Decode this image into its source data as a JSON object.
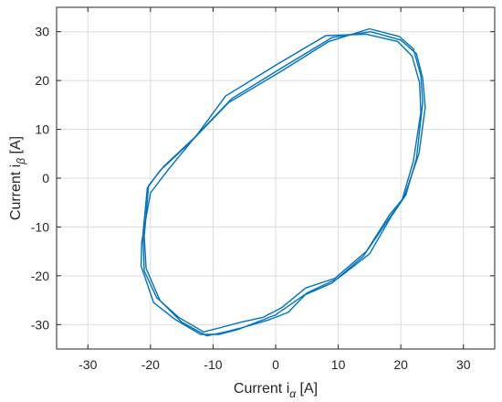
{
  "chart_data": {
    "type": "line",
    "xlabel": {
      "main": "Current i",
      "sub": "α",
      "unit": " [A]"
    },
    "ylabel": {
      "main": "Current i",
      "sub": "β",
      "unit": " [A]"
    },
    "xlim": [
      -35,
      35
    ],
    "ylim": [
      -35,
      35
    ],
    "xticks": [
      -30,
      -20,
      -10,
      0,
      10,
      20,
      30
    ],
    "yticks": [
      -30,
      -20,
      -10,
      0,
      10,
      20,
      30
    ],
    "grid": true,
    "series_color": "#0072BD",
    "series": [
      {
        "x": [
          15.2,
          20.0,
          22.5,
          23.5,
          23.9,
          22.9,
          20.5,
          18.4,
          15.0,
          10.0,
          5.0,
          2.0,
          -1.0,
          -5.0,
          -8.0,
          -11.0,
          -15.0,
          -18.5,
          -20.7,
          -21.0,
          -20.3,
          -17.8,
          -13.0,
          -7.0,
          1.5,
          9.0,
          15.2
        ],
        "y": [
          30.0,
          28.3,
          25.5,
          20.5,
          14.5,
          5.0,
          -4.0,
          -8.0,
          -15.5,
          -20.5,
          -23.5,
          -27.5,
          -29.0,
          -30.5,
          -31.5,
          -32.3,
          -29.5,
          -25.0,
          -18.5,
          -12.0,
          -1.5,
          2.5,
          8.3,
          16.3,
          23.0,
          28.8,
          30.0
        ]
      },
      {
        "x": [
          15.0,
          19.8,
          22.0,
          23.2,
          23.5,
          22.5,
          20.8,
          18.2,
          14.5,
          9.5,
          4.8,
          1.0,
          -2.0,
          -5.5,
          -8.5,
          -11.5,
          -15.5,
          -19.0,
          -21.0,
          -21.2,
          -20.5,
          -18.5,
          -13.5,
          -7.5,
          1.0,
          8.5,
          15.0
        ],
        "y": [
          30.6,
          29.0,
          26.5,
          21.0,
          15.5,
          4.0,
          -3.5,
          -7.5,
          -15.0,
          -20.5,
          -22.5,
          -26.5,
          -28.5,
          -29.5,
          -30.5,
          -31.5,
          -28.5,
          -24.5,
          -19.0,
          -11.5,
          -2.0,
          1.5,
          7.5,
          15.5,
          22.0,
          28.0,
          30.6
        ]
      },
      {
        "x": [
          14.5,
          19.5,
          21.8,
          23.0,
          23.2,
          22.0,
          20.2,
          18.0,
          14.0,
          9.0,
          4.5,
          0.0,
          -3.0,
          -6.0,
          -9.0,
          -12.0,
          -16.0,
          -19.5,
          -21.5,
          -21.4,
          -20.0,
          -17.0,
          -12.5,
          -8.0,
          0.5,
          8.0,
          14.5
        ],
        "y": [
          29.5,
          28.0,
          25.0,
          19.5,
          13.5,
          3.5,
          -4.5,
          -8.5,
          -16.0,
          -21.5,
          -24.0,
          -28.0,
          -29.5,
          -31.0,
          -32.0,
          -32.0,
          -29.0,
          -25.5,
          -18.0,
          -13.0,
          -3.0,
          2.0,
          9.0,
          16.8,
          23.5,
          29.2,
          29.5
        ]
      }
    ]
  }
}
